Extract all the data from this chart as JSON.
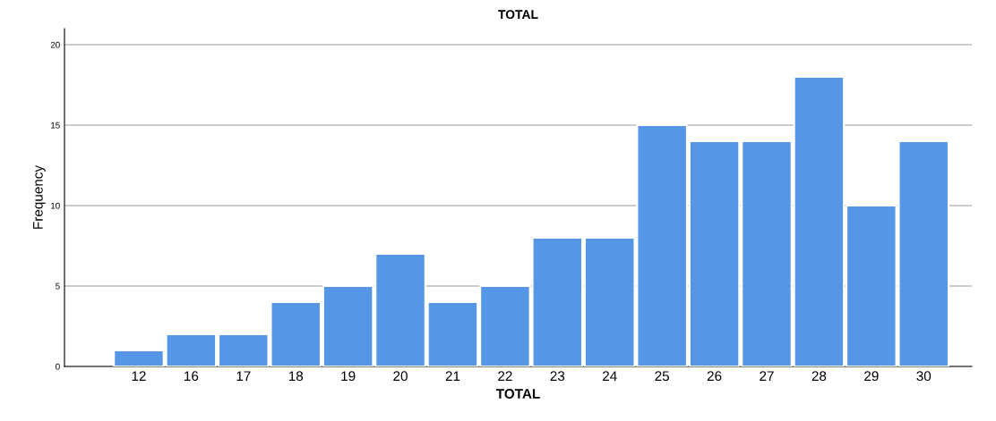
{
  "chart_data": {
    "type": "bar",
    "title": "TOTAL",
    "xlabel": "TOTAL",
    "ylabel": "Frequency",
    "categories": [
      "12",
      "16",
      "17",
      "18",
      "19",
      "20",
      "21",
      "22",
      "23",
      "24",
      "25",
      "26",
      "27",
      "28",
      "29",
      "30"
    ],
    "values": [
      1,
      2,
      2,
      4,
      5,
      7,
      4,
      5,
      8,
      8,
      15,
      14,
      14,
      18,
      10,
      14
    ],
    "color": "#5596e6",
    "ylim": [
      0,
      21
    ],
    "yticks": [
      0,
      5,
      10,
      15,
      20
    ],
    "grid": "y"
  }
}
